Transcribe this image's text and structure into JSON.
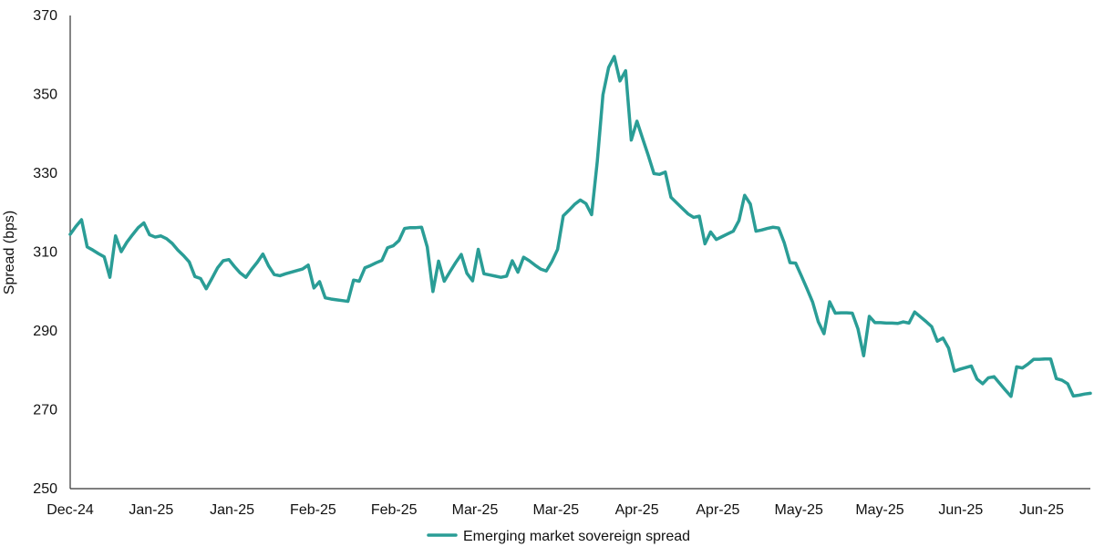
{
  "colors": {
    "series": "#2a9d96",
    "axis": "#333333"
  },
  "chart_data": {
    "type": "line",
    "title": "",
    "xlabel": "",
    "ylabel": "Spread (bps)",
    "ylim": [
      250,
      370
    ],
    "yticks": [
      250,
      270,
      290,
      310,
      330,
      350,
      370
    ],
    "xtick_labels": [
      "Dec-24",
      "Jan-25",
      "Jan-25",
      "Feb-25",
      "Feb-25",
      "Mar-25",
      "Mar-25",
      "Apr-25",
      "Apr-25",
      "May-25",
      "May-25",
      "Jun-25",
      "Jun-25"
    ],
    "grid": false,
    "legend": "bottom",
    "series": [
      {
        "name": "Emerging market sovereign spread",
        "color": "#2a9d96",
        "values": [
          314.5,
          316.5,
          318.2,
          311.3,
          310.5,
          309.6,
          308.8,
          303.6,
          314.1,
          310.1,
          312.5,
          314.4,
          316.2,
          317.4,
          314.4,
          313.8,
          314.1,
          313.4,
          312.2,
          310.5,
          309.1,
          307.5,
          303.8,
          303.3,
          300.7,
          303.3,
          306.0,
          307.8,
          308.1,
          306.3,
          304.7,
          303.6,
          305.6,
          307.4,
          309.5,
          306.5,
          304.3,
          304.0,
          304.5,
          304.9,
          305.3,
          305.7,
          306.7,
          300.9,
          302.5,
          298.4,
          298.1,
          297.9,
          297.7,
          297.5,
          302.9,
          302.6,
          306.0,
          306.6,
          307.3,
          307.9,
          311.1,
          311.6,
          312.9,
          316.0,
          316.2,
          316.2,
          316.3,
          311.3,
          300.0,
          307.7,
          302.6,
          305.0,
          307.3,
          309.4,
          304.6,
          302.7,
          310.7,
          304.5,
          304.2,
          303.9,
          303.6,
          303.9,
          307.8,
          304.9,
          308.7,
          307.8,
          306.7,
          305.7,
          305.2,
          307.6,
          310.7,
          319.2,
          320.6,
          322.1,
          323.2,
          322.3,
          319.5,
          333.0,
          349.9,
          356.8,
          359.6,
          353.4,
          356.0,
          338.4,
          343.2,
          338.8,
          334.5,
          329.9,
          329.7,
          330.3,
          323.9,
          322.5,
          321.1,
          319.7,
          318.8,
          319.1,
          312.1,
          315.1,
          313.2,
          313.9,
          314.6,
          315.3,
          318.0,
          324.4,
          322.2,
          315.3,
          315.6,
          316.0,
          316.3,
          316.1,
          312.3,
          307.3,
          307.2,
          304.0,
          300.7,
          297.3,
          292.3,
          289.3,
          297.4,
          294.5,
          294.6,
          294.6,
          294.5,
          290.5,
          283.7,
          293.7,
          292.1,
          292.1,
          292.0,
          292.0,
          291.9,
          292.3,
          292.0,
          294.8,
          293.6,
          292.4,
          291.1,
          287.4,
          288.2,
          285.6,
          279.8,
          280.3,
          280.7,
          281.1,
          277.8,
          276.6,
          278.1,
          278.4,
          276.7,
          275.0,
          273.4,
          280.9,
          280.6,
          281.6,
          282.8,
          282.8,
          282.9,
          282.9,
          277.9,
          277.5,
          276.6,
          273.5,
          273.7,
          274.0,
          274.2
        ]
      }
    ]
  }
}
